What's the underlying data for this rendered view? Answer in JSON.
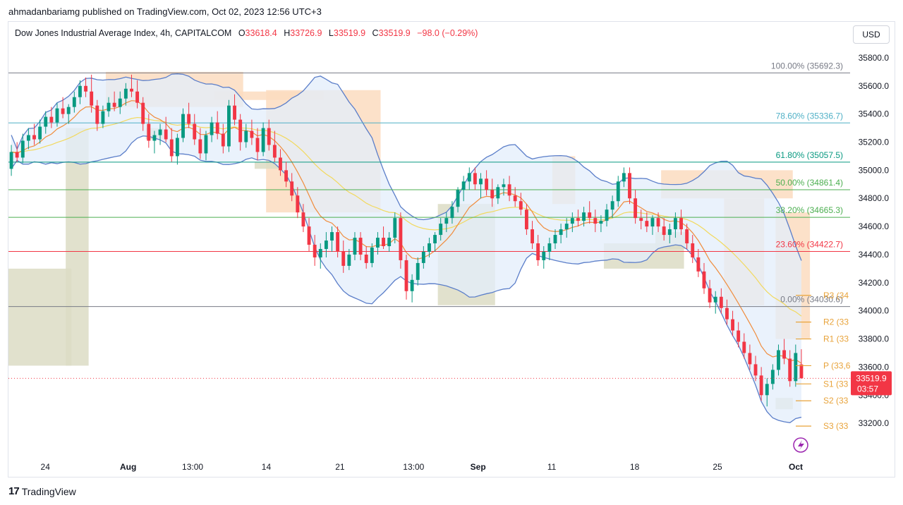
{
  "header": {
    "published": "ahmadanbariamg published on TradingView.com, Oct 02, 2023 12:56 UTC+3",
    "currency": "USD"
  },
  "legend": {
    "symbol": "Dow Jones Industrial Average Index, 4h, CAPITALCOM",
    "o_label": "O",
    "o_value": "33618.4",
    "h_label": "H",
    "h_value": "33726.9",
    "l_label": "L",
    "l_value": "33519.9",
    "c_label": "C",
    "c_value": "33519.9",
    "change": "−98.0 (−0.29%)"
  },
  "brand": {
    "logo": "17",
    "name": "TradingView"
  },
  "colors": {
    "up": "#089981",
    "down": "#f23645",
    "bb": "#5b7ec9",
    "bb_fill": "#e3eefb",
    "ema_fast": "#f08c3c",
    "ema_slow": "#f2d95e",
    "zone_supply": "#fcdcc0",
    "zone_demand": "#dcdcc4",
    "pivot": "#e8a33a"
  },
  "chart_data": {
    "type": "candlestick",
    "y_axis": {
      "range": [
        33000,
        35900
      ],
      "ticks": [
        "35800.0",
        "35600.0",
        "35400.0",
        "35200.0",
        "35000.0",
        "34800.0",
        "34600.0",
        "34400.0",
        "34200.0",
        "34000.0",
        "33800.0",
        "33600.0",
        "33400.0",
        "33200.0"
      ]
    },
    "x_axis": {
      "ticks": [
        "24",
        "Aug",
        "13:00",
        "14",
        "21",
        "13:00",
        "Sep",
        "11",
        "18",
        "25",
        "Oct"
      ]
    },
    "fib_levels": [
      {
        "label": "100.00% (35692.3)",
        "price": 35692.3,
        "color": "#787b86"
      },
      {
        "label": "78.60% (35336.7)",
        "price": 35336.7,
        "color": "#4fb0c6"
      },
      {
        "label": "61.80% (35057.5)",
        "price": 35057.5,
        "color": "#089981"
      },
      {
        "label": "50.00% (34861.4)",
        "price": 34861.4,
        "color": "#4caf50"
      },
      {
        "label": "38.20% (34665.3)",
        "price": 34665.3,
        "color": "#4caf50"
      },
      {
        "label": "23.60% (34422.7)",
        "price": 34422.7,
        "color": "#f23645"
      },
      {
        "label": "0.00% (34030.6)",
        "price": 34030.6,
        "color": "#787b86"
      }
    ],
    "pivots": [
      {
        "label": "R3 (34",
        "price": 34110
      },
      {
        "label": "R2 (33",
        "price": 33920
      },
      {
        "label": "R1 (33",
        "price": 33800
      },
      {
        "label": "P (33,6",
        "price": 33610
      },
      {
        "label": "S1 (33",
        "price": 33480
      },
      {
        "label": "S2 (33",
        "price": 33360
      },
      {
        "label": "S3 (33",
        "price": 33180
      }
    ],
    "last_price": {
      "value": "33519.9",
      "countdown": "03:57",
      "price": 33519.9
    },
    "candles": [
      [
        35010,
        35180,
        34960,
        35130
      ],
      [
        35130,
        35200,
        35060,
        35090
      ],
      [
        35090,
        35260,
        35050,
        35210
      ],
      [
        35210,
        35300,
        35150,
        35250
      ],
      [
        35250,
        35330,
        35180,
        35220
      ],
      [
        35220,
        35360,
        35190,
        35310
      ],
      [
        35310,
        35420,
        35260,
        35380
      ],
      [
        35380,
        35450,
        35300,
        35340
      ],
      [
        35340,
        35480,
        35310,
        35440
      ],
      [
        35440,
        35520,
        35370,
        35400
      ],
      [
        35400,
        35470,
        35330,
        35450
      ],
      [
        35450,
        35560,
        35410,
        35520
      ],
      [
        35520,
        35640,
        35470,
        35600
      ],
      [
        35600,
        35660,
        35520,
        35560
      ],
      [
        35560,
        35680,
        35410,
        35460
      ],
      [
        35460,
        35500,
        35280,
        35330
      ],
      [
        35330,
        35460,
        35300,
        35420
      ],
      [
        35420,
        35520,
        35380,
        35480
      ],
      [
        35480,
        35560,
        35420,
        35450
      ],
      [
        35450,
        35560,
        35400,
        35510
      ],
      [
        35510,
        35620,
        35460,
        35580
      ],
      [
        35580,
        35680,
        35520,
        35560
      ],
      [
        35560,
        35640,
        35440,
        35480
      ],
      [
        35480,
        35520,
        35280,
        35330
      ],
      [
        35330,
        35400,
        35160,
        35210
      ],
      [
        35210,
        35280,
        35120,
        35250
      ],
      [
        35250,
        35330,
        35180,
        35290
      ],
      [
        35290,
        35380,
        35200,
        35220
      ],
      [
        35220,
        35300,
        35060,
        35100
      ],
      [
        35100,
        35260,
        35040,
        35230
      ],
      [
        35230,
        35440,
        35200,
        35400
      ],
      [
        35400,
        35480,
        35300,
        35330
      ],
      [
        35330,
        35400,
        35180,
        35220
      ],
      [
        35220,
        35300,
        35080,
        35120
      ],
      [
        35120,
        35280,
        35070,
        35250
      ],
      [
        35250,
        35380,
        35200,
        35340
      ],
      [
        35340,
        35420,
        35220,
        35260
      ],
      [
        35260,
        35330,
        35120,
        35170
      ],
      [
        35170,
        35500,
        35130,
        35460
      ],
      [
        35460,
        35540,
        35320,
        35360
      ],
      [
        35360,
        35400,
        35140,
        35200
      ],
      [
        35200,
        35330,
        35160,
        35280
      ],
      [
        35280,
        35360,
        35180,
        35230
      ],
      [
        35230,
        35300,
        35070,
        35130
      ],
      [
        35130,
        35340,
        35100,
        35300
      ],
      [
        35300,
        35360,
        35140,
        35180
      ],
      [
        35180,
        35280,
        35060,
        35090
      ],
      [
        35090,
        35150,
        34960,
        35000
      ],
      [
        35000,
        35060,
        34880,
        34920
      ],
      [
        34920,
        34980,
        34780,
        34820
      ],
      [
        34820,
        34880,
        34660,
        34700
      ],
      [
        34700,
        34760,
        34560,
        34600
      ],
      [
        34600,
        34660,
        34420,
        34470
      ],
      [
        34470,
        34540,
        34320,
        34380
      ],
      [
        34380,
        34480,
        34300,
        34440
      ],
      [
        34440,
        34560,
        34380,
        34500
      ],
      [
        34500,
        34600,
        34420,
        34560
      ],
      [
        34560,
        34600,
        34380,
        34420
      ],
      [
        34420,
        34500,
        34270,
        34320
      ],
      [
        34320,
        34440,
        34290,
        34400
      ],
      [
        34400,
        34560,
        34360,
        34520
      ],
      [
        34520,
        34560,
        34360,
        34400
      ],
      [
        34400,
        34460,
        34300,
        34340
      ],
      [
        34340,
        34480,
        34310,
        34450
      ],
      [
        34450,
        34560,
        34400,
        34520
      ],
      [
        34520,
        34600,
        34440,
        34460
      ],
      [
        34460,
        34560,
        34420,
        34520
      ],
      [
        34520,
        34700,
        34480,
        34660
      ],
      [
        34660,
        34700,
        34300,
        34360
      ],
      [
        34360,
        34400,
        34080,
        34140
      ],
      [
        34140,
        34260,
        34060,
        34220
      ],
      [
        34220,
        34380,
        34180,
        34340
      ],
      [
        34340,
        34460,
        34300,
        34420
      ],
      [
        34420,
        34520,
        34380,
        34480
      ],
      [
        34480,
        34560,
        34420,
        34540
      ],
      [
        34540,
        34660,
        34500,
        34620
      ],
      [
        34620,
        34700,
        34560,
        34660
      ],
      [
        34660,
        34780,
        34620,
        34740
      ],
      [
        34740,
        34880,
        34700,
        34860
      ],
      [
        34860,
        34960,
        34780,
        34920
      ],
      [
        34920,
        35020,
        34860,
        34980
      ],
      [
        34980,
        35020,
        34860,
        34900
      ],
      [
        34900,
        34980,
        34800,
        34940
      ],
      [
        34940,
        35000,
        34820,
        34860
      ],
      [
        34860,
        34940,
        34740,
        34800
      ],
      [
        34800,
        34900,
        34760,
        34880
      ],
      [
        34880,
        34940,
        34820,
        34900
      ],
      [
        34900,
        34960,
        34780,
        34820
      ],
      [
        34820,
        34880,
        34740,
        34780
      ],
      [
        34780,
        34840,
        34680,
        34720
      ],
      [
        34720,
        34760,
        34540,
        34580
      ],
      [
        34580,
        34640,
        34440,
        34480
      ],
      [
        34480,
        34540,
        34320,
        34360
      ],
      [
        34360,
        34460,
        34300,
        34420
      ],
      [
        34420,
        34520,
        34360,
        34480
      ],
      [
        34480,
        34580,
        34440,
        34540
      ],
      [
        34540,
        34620,
        34480,
        34580
      ],
      [
        34580,
        34660,
        34520,
        34620
      ],
      [
        34620,
        34700,
        34560,
        34660
      ],
      [
        34660,
        34720,
        34600,
        34640
      ],
      [
        34640,
        34740,
        34600,
        34700
      ],
      [
        34700,
        34780,
        34620,
        34660
      ],
      [
        34660,
        34720,
        34560,
        34620
      ],
      [
        34620,
        34680,
        34560,
        34640
      ],
      [
        34640,
        34760,
        34600,
        34720
      ],
      [
        34720,
        34820,
        34660,
        34780
      ],
      [
        34780,
        34960,
        34740,
        34920
      ],
      [
        34920,
        35020,
        34880,
        34980
      ],
      [
        34980,
        35020,
        34760,
        34800
      ],
      [
        34800,
        34860,
        34620,
        34660
      ],
      [
        34660,
        34720,
        34580,
        34640
      ],
      [
        34640,
        34700,
        34560,
        34600
      ],
      [
        34600,
        34680,
        34540,
        34660
      ],
      [
        34660,
        34700,
        34560,
        34600
      ],
      [
        34600,
        34660,
        34500,
        34540
      ],
      [
        34540,
        34620,
        34480,
        34580
      ],
      [
        34580,
        34700,
        34520,
        34660
      ],
      [
        34660,
        34720,
        34540,
        34580
      ],
      [
        34580,
        34620,
        34440,
        34480
      ],
      [
        34480,
        34540,
        34340,
        34380
      ],
      [
        34380,
        34440,
        34240,
        34280
      ],
      [
        34280,
        34340,
        34120,
        34160
      ],
      [
        34160,
        34220,
        34020,
        34060
      ],
      [
        34060,
        34140,
        33980,
        34100
      ],
      [
        34100,
        34160,
        33980,
        34020
      ],
      [
        34020,
        34080,
        33900,
        33940
      ],
      [
        33940,
        34000,
        33820,
        33860
      ],
      [
        33860,
        33920,
        33740,
        33780
      ],
      [
        33780,
        33840,
        33660,
        33700
      ],
      [
        33700,
        33760,
        33580,
        33620
      ],
      [
        33620,
        33680,
        33500,
        33540
      ],
      [
        33540,
        33600,
        33360,
        33400
      ],
      [
        33400,
        33520,
        33320,
        33480
      ],
      [
        33480,
        33620,
        33440,
        33580
      ],
      [
        33580,
        33760,
        33540,
        33720
      ],
      [
        33720,
        33800,
        33620,
        33660
      ],
      [
        33660,
        33720,
        33460,
        33500
      ],
      [
        33500,
        33760,
        33460,
        33700
      ],
      [
        33618.4,
        33726.9,
        33519.9,
        33519.9
      ]
    ],
    "annotations": []
  }
}
